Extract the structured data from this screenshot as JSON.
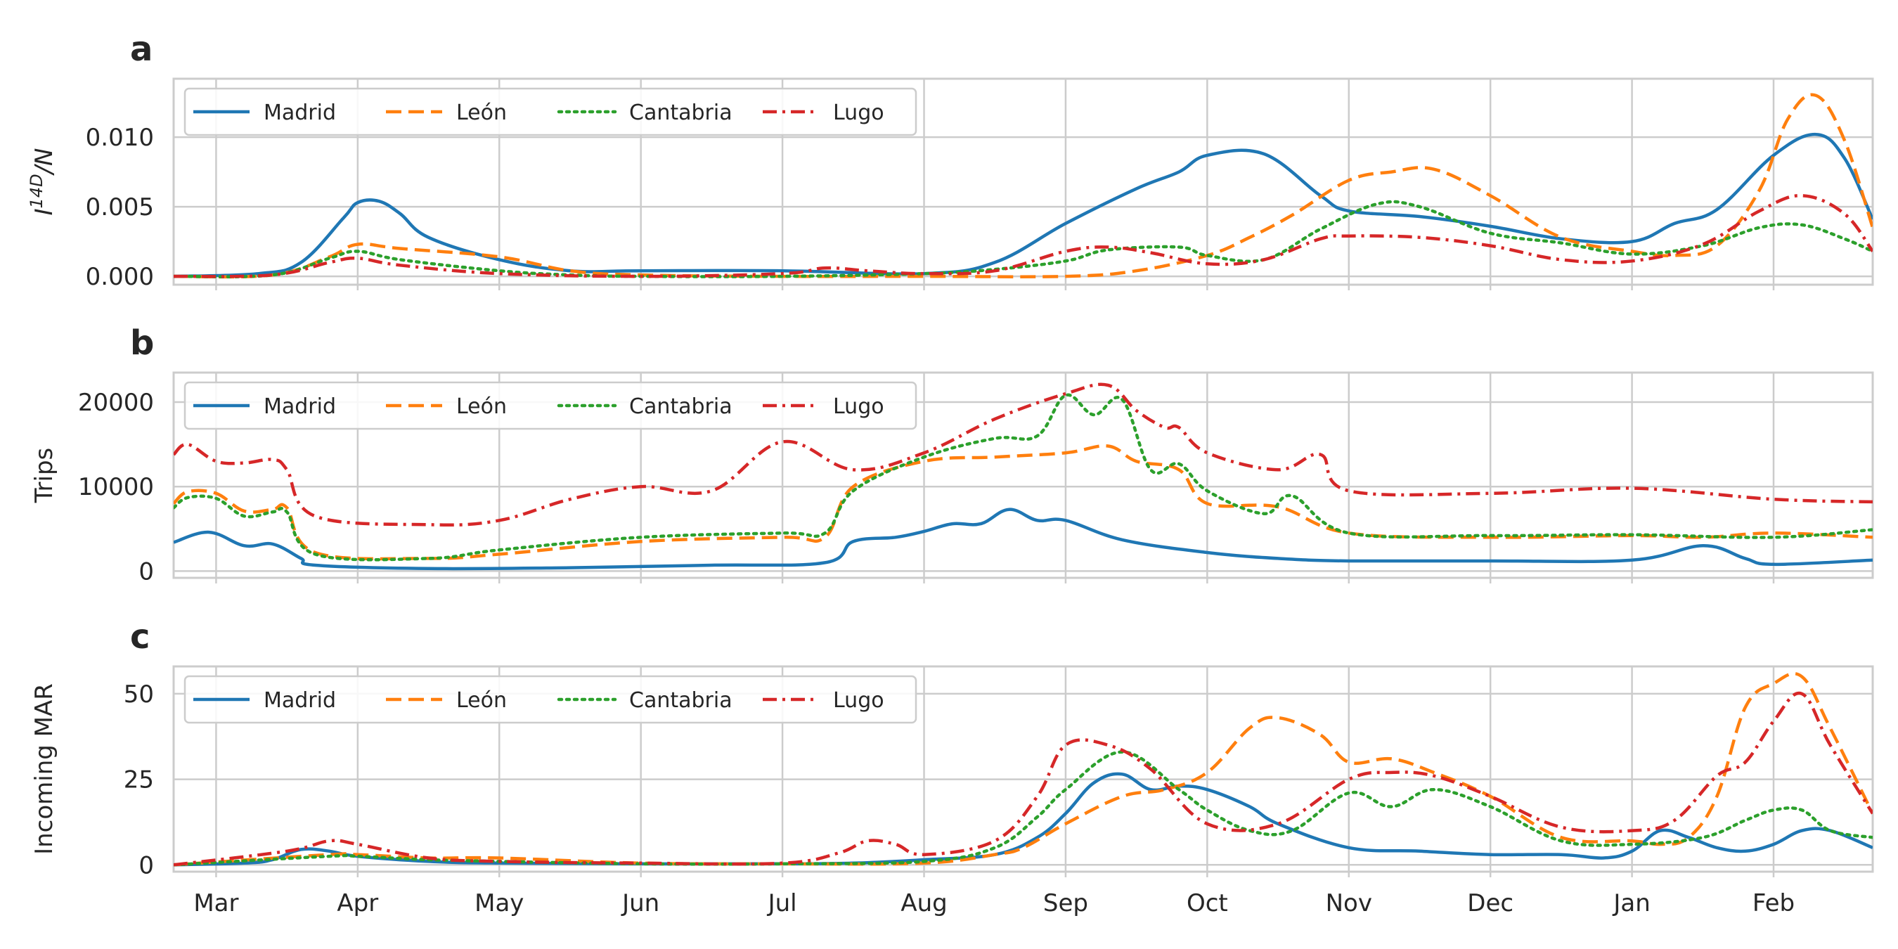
{
  "figure": {
    "colors": {
      "Madrid": "#1f77b4",
      "León": "#ff7f0e",
      "Cantabria": "#2ca02c",
      "Lugo": "#d62728"
    },
    "line_styles": {
      "Madrid": "solid",
      "León": "dashed",
      "Cantabria": "dotted",
      "Lugo": "dashdot"
    },
    "grid": true,
    "legend_placement": "upper-left, 4 columns"
  },
  "chart_data": [
    {
      "panel": "a",
      "type": "line",
      "ylabel": "I^{14D}/N",
      "ylabel_main": "I",
      "ylabel_sup": "14D",
      "ylabel_tail": "/N",
      "xlim": [
        -0.3,
        11.7
      ],
      "ylim": [
        -0.0006,
        0.0142
      ],
      "yticks": [
        0.0,
        0.005,
        0.01
      ],
      "ytick_labels": [
        "0.000",
        "0.005",
        "0.010"
      ],
      "x_tick_labels": [
        "Mar",
        "Apr",
        "May",
        "Jun",
        "Jul",
        "Aug",
        "Sep",
        "Oct",
        "Nov",
        "Dec",
        "Jan",
        "Feb"
      ],
      "legend": [
        "Madrid",
        "León",
        "Cantabria",
        "Lugo"
      ],
      "series": [
        {
          "name": "Madrid",
          "x": [
            -0.3,
            0.3,
            0.6,
            0.9,
            1.0,
            1.15,
            1.3,
            1.5,
            2.0,
            2.5,
            3.0,
            4.0,
            5.0,
            5.5,
            6.0,
            6.5,
            6.8,
            7.0,
            7.4,
            7.8,
            8.0,
            8.5,
            9.0,
            9.5,
            10.0,
            10.3,
            10.6,
            11.0,
            11.3,
            11.5,
            11.7
          ],
          "y": [
            0.0,
            0.0002,
            0.001,
            0.0042,
            0.0053,
            0.0054,
            0.0045,
            0.0028,
            0.0012,
            0.0004,
            0.0004,
            0.0004,
            0.0002,
            0.001,
            0.0038,
            0.0063,
            0.0075,
            0.0087,
            0.0088,
            0.0058,
            0.0047,
            0.0043,
            0.0036,
            0.0027,
            0.0025,
            0.0038,
            0.0048,
            0.0087,
            0.0102,
            0.0085,
            0.0041
          ]
        },
        {
          "name": "León",
          "x": [
            -0.3,
            0.4,
            0.8,
            1.0,
            1.3,
            2.0,
            2.5,
            3.0,
            4.0,
            5.0,
            6.0,
            6.5,
            7.0,
            7.3,
            7.6,
            8.0,
            8.3,
            8.6,
            9.0,
            9.5,
            10.0,
            10.3,
            10.6,
            10.9,
            11.1,
            11.3,
            11.5,
            11.7
          ],
          "y": [
            0.0,
            0.0001,
            0.0014,
            0.0023,
            0.002,
            0.0014,
            0.0004,
            0.0001,
            0.0,
            0.0,
            0.0,
            0.0004,
            0.0015,
            0.0028,
            0.0044,
            0.0069,
            0.0075,
            0.0077,
            0.0058,
            0.0028,
            0.0018,
            0.0015,
            0.0022,
            0.0062,
            0.0113,
            0.013,
            0.0098,
            0.0035
          ]
        },
        {
          "name": "Cantabria",
          "x": [
            -0.3,
            0.4,
            0.8,
            1.0,
            1.3,
            2.0,
            2.5,
            3.0,
            4.0,
            5.0,
            5.5,
            6.0,
            6.3,
            6.8,
            7.0,
            7.4,
            7.8,
            8.2,
            8.5,
            9.0,
            9.5,
            10.0,
            10.5,
            10.9,
            11.2,
            11.5,
            11.7
          ],
          "y": [
            0.0,
            0.0001,
            0.0013,
            0.0018,
            0.0012,
            0.0004,
            0.0001,
            0.0,
            0.0,
            0.0002,
            0.0005,
            0.0011,
            0.0019,
            0.0021,
            0.0015,
            0.0012,
            0.0034,
            0.0052,
            0.005,
            0.0031,
            0.0024,
            0.0016,
            0.0022,
            0.0035,
            0.0037,
            0.0027,
            0.0018
          ]
        },
        {
          "name": "Lugo",
          "x": [
            -0.3,
            0.4,
            0.8,
            1.0,
            1.3,
            2.0,
            3.0,
            4.0,
            4.3,
            4.6,
            5.0,
            5.5,
            6.0,
            6.3,
            6.6,
            7.0,
            7.4,
            7.8,
            8.0,
            8.5,
            9.0,
            9.5,
            10.0,
            10.5,
            10.9,
            11.2,
            11.5,
            11.7
          ],
          "y": [
            0.0,
            0.0001,
            0.001,
            0.0013,
            0.0008,
            0.0002,
            0.0,
            0.0002,
            0.0006,
            0.0004,
            0.0002,
            0.0004,
            0.0018,
            0.0021,
            0.0017,
            0.0009,
            0.0012,
            0.0027,
            0.0029,
            0.0028,
            0.0022,
            0.0012,
            0.0011,
            0.0023,
            0.0047,
            0.0058,
            0.0045,
            0.0018
          ]
        }
      ]
    },
    {
      "panel": "b",
      "type": "line",
      "ylabel": "Trips",
      "xlim": [
        -0.3,
        11.7
      ],
      "ylim": [
        -800,
        23500
      ],
      "yticks": [
        0,
        10000,
        20000
      ],
      "ytick_labels": [
        "0",
        "10000",
        "20000"
      ],
      "x_tick_labels": [
        "Mar",
        "Apr",
        "May",
        "Jun",
        "Jul",
        "Aug",
        "Sep",
        "Oct",
        "Nov",
        "Dec",
        "Jan",
        "Feb"
      ],
      "legend": [
        "Madrid",
        "León",
        "Cantabria",
        "Lugo"
      ],
      "series": [
        {
          "name": "Madrid",
          "x": [
            -0.3,
            -0.05,
            0.2,
            0.4,
            0.6,
            0.7,
            1.5,
            2.5,
            3.5,
            4.3,
            4.5,
            4.8,
            5.0,
            5.2,
            5.4,
            5.6,
            5.8,
            6.0,
            6.4,
            7.0,
            7.5,
            8.0,
            9.0,
            10.0,
            10.5,
            10.8,
            11.0,
            11.7
          ],
          "y": [
            3400,
            4600,
            3000,
            3200,
            1500,
            700,
            300,
            400,
            700,
            1000,
            3500,
            4000,
            4700,
            5600,
            5600,
            7300,
            6000,
            6000,
            3700,
            2200,
            1500,
            1200,
            1200,
            1300,
            3000,
            1500,
            800,
            1300
          ]
        },
        {
          "name": "León",
          "x": [
            -0.3,
            -0.2,
            0.0,
            0.2,
            0.4,
            0.5,
            0.7,
            1.5,
            2.0,
            3.0,
            4.0,
            4.3,
            4.5,
            5.0,
            5.5,
            6.0,
            6.3,
            6.5,
            6.8,
            7.0,
            7.5,
            8.0,
            9.0,
            10.0,
            10.5,
            11.0,
            11.7
          ],
          "y": [
            8000,
            9400,
            9200,
            7100,
            7300,
            7500,
            2200,
            1500,
            2000,
            3500,
            4000,
            4000,
            10000,
            13000,
            13500,
            14000,
            14800,
            13000,
            12000,
            8000,
            7600,
            4500,
            4000,
            4200,
            4000,
            4500,
            4000
          ]
        },
        {
          "name": "Cantabria",
          "x": [
            -0.3,
            -0.2,
            0.0,
            0.2,
            0.4,
            0.5,
            0.7,
            1.5,
            2.0,
            3.0,
            4.0,
            4.3,
            4.5,
            5.0,
            5.5,
            5.8,
            6.0,
            6.2,
            6.4,
            6.6,
            6.8,
            7.0,
            7.4,
            7.6,
            8.0,
            9.0,
            10.0,
            11.0,
            11.7
          ],
          "y": [
            7500,
            8700,
            8600,
            6500,
            7000,
            7000,
            2000,
            1500,
            2500,
            4000,
            4500,
            4500,
            9500,
            13500,
            15700,
            16000,
            20800,
            18500,
            20300,
            12000,
            12700,
            9500,
            6800,
            8900,
            4500,
            4200,
            4300,
            4000,
            4900
          ]
        },
        {
          "name": "Lugo",
          "x": [
            -0.3,
            -0.2,
            0.0,
            0.2,
            0.4,
            0.5,
            0.7,
            1.5,
            2.0,
            2.5,
            3.0,
            3.5,
            4.0,
            4.5,
            5.0,
            5.5,
            6.0,
            6.3,
            6.5,
            6.7,
            6.8,
            7.0,
            7.5,
            7.8,
            8.0,
            9.0,
            10.0,
            11.0,
            11.7
          ],
          "y": [
            13800,
            15000,
            13000,
            12800,
            13200,
            12000,
            6500,
            5500,
            6000,
            8500,
            10000,
            9500,
            15300,
            12000,
            14000,
            18000,
            21000,
            22000,
            19000,
            17000,
            17000,
            14000,
            12000,
            13800,
            9500,
            9200,
            9800,
            8500,
            8200
          ]
        }
      ]
    },
    {
      "panel": "c",
      "type": "line",
      "ylabel": "Incoming MAR",
      "xlim": [
        -0.3,
        11.7
      ],
      "ylim": [
        -2,
        58
      ],
      "yticks": [
        0,
        25,
        50
      ],
      "ytick_labels": [
        "0",
        "25",
        "50"
      ],
      "x_tick_labels": [
        "Mar",
        "Apr",
        "May",
        "Jun",
        "Jul",
        "Aug",
        "Sep",
        "Oct",
        "Nov",
        "Dec",
        "Jan",
        "Feb"
      ],
      "legend": [
        "Madrid",
        "León",
        "Cantabria",
        "Lugo"
      ],
      "series": [
        {
          "name": "Madrid",
          "x": [
            -0.3,
            0.2,
            0.4,
            0.6,
            0.8,
            1.0,
            1.5,
            2.0,
            3.0,
            4.0,
            4.5,
            5.0,
            5.5,
            5.8,
            6.0,
            6.2,
            6.4,
            6.6,
            6.8,
            7.0,
            7.3,
            7.5,
            8.0,
            8.5,
            9.0,
            9.5,
            9.8,
            10.0,
            10.2,
            10.4,
            10.6,
            10.8,
            11.0,
            11.2,
            11.4,
            11.7
          ],
          "y": [
            0,
            0.5,
            1.5,
            4.5,
            4,
            2.5,
            1,
            0.5,
            0.3,
            0.3,
            0.5,
            1.5,
            3,
            8,
            15,
            24,
            26.5,
            22,
            23,
            22,
            17,
            12,
            5,
            4,
            3,
            3,
            2,
            4,
            10,
            8,
            5,
            4,
            6,
            10,
            10,
            5
          ]
        },
        {
          "name": "León",
          "x": [
            -0.3,
            0.8,
            1.0,
            1.5,
            2.0,
            3.0,
            4.0,
            5.0,
            5.5,
            5.7,
            6.0,
            6.4,
            6.7,
            7.0,
            7.3,
            7.5,
            7.8,
            8.0,
            8.3,
            8.6,
            9.0,
            9.5,
            10.0,
            10.2,
            10.4,
            10.6,
            10.8,
            11.0,
            11.2,
            11.4,
            11.7
          ],
          "y": [
            0,
            3,
            3,
            2,
            2,
            0.5,
            0.3,
            0.5,
            3,
            5,
            12,
            20,
            22,
            27,
            40,
            43,
            38,
            30,
            31,
            27,
            20,
            8,
            7,
            6,
            8,
            20,
            46,
            53,
            55,
            40,
            15
          ]
        },
        {
          "name": "Cantabria",
          "x": [
            -0.3,
            0.8,
            1.0,
            1.5,
            2.0,
            3.0,
            4.0,
            5.0,
            5.5,
            5.8,
            6.0,
            6.4,
            6.8,
            7.0,
            7.3,
            7.6,
            8.0,
            8.3,
            8.6,
            9.0,
            9.5,
            10.0,
            10.5,
            10.8,
            11.0,
            11.2,
            11.4,
            11.7
          ],
          "y": [
            0,
            2.5,
            2.5,
            1.5,
            1,
            0.3,
            0.3,
            1,
            5,
            14,
            22,
            33,
            22,
            16,
            10,
            10,
            21,
            17,
            22,
            17,
            7,
            6,
            8,
            13,
            16,
            16,
            10,
            8
          ]
        },
        {
          "name": "Lugo",
          "x": [
            -0.3,
            0.5,
            0.8,
            1.0,
            1.5,
            2.0,
            3.0,
            4.0,
            4.4,
            4.6,
            4.8,
            5.0,
            5.5,
            5.8,
            6.0,
            6.3,
            6.6,
            7.0,
            7.5,
            8.0,
            8.3,
            8.6,
            9.0,
            9.5,
            10.0,
            10.3,
            10.6,
            10.8,
            11.0,
            11.2,
            11.4,
            11.7
          ],
          "y": [
            0,
            4,
            7,
            6,
            2,
            1,
            0.5,
            0.5,
            3.5,
            7,
            6,
            3,
            7,
            20,
            35,
            35,
            28,
            12,
            12,
            25,
            27,
            26,
            20,
            11,
            10,
            13,
            26,
            30,
            42,
            50,
            35,
            15
          ]
        }
      ]
    }
  ]
}
